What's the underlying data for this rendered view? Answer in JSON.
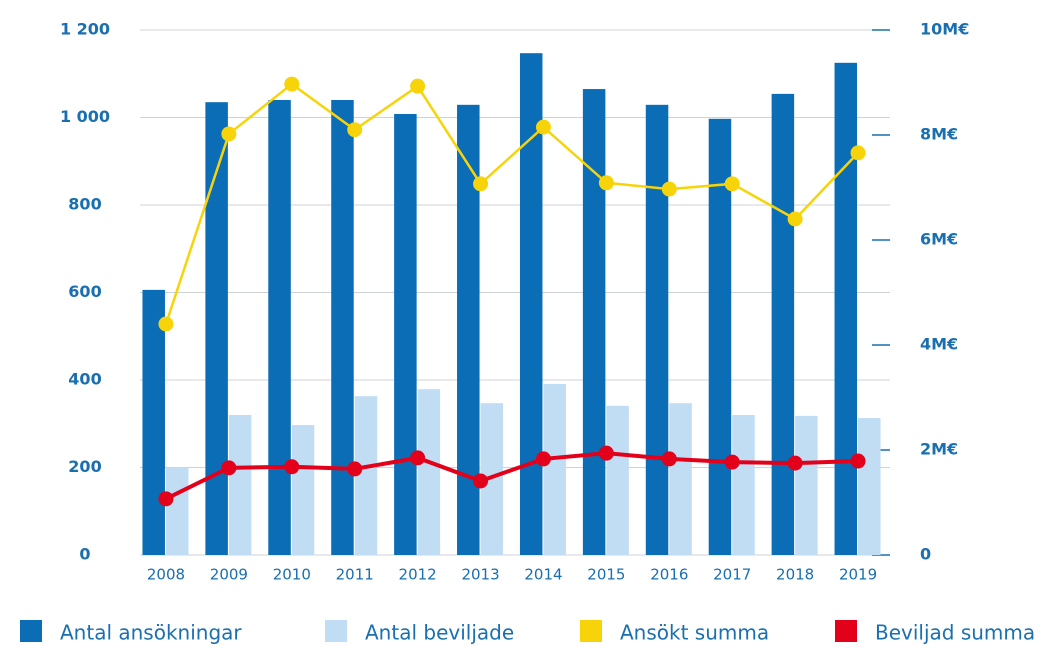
{
  "chart_data": {
    "type": "bar-line",
    "categories": [
      "2008",
      "2009",
      "2010",
      "2011",
      "2012",
      "2013",
      "2014",
      "2015",
      "2016",
      "2017",
      "2018",
      "2019"
    ],
    "series": [
      {
        "name": "Antal ansökningar",
        "type": "bar",
        "color": "#0b6db5",
        "values": [
          606,
          1035,
          1040,
          1040,
          1008,
          1029,
          1147,
          1065,
          1029,
          997,
          1054,
          1125
        ]
      },
      {
        "name": "Antal beviljade",
        "type": "bar",
        "color": "#c0ddf4",
        "values": [
          199,
          320,
          297,
          363,
          379,
          347,
          391,
          341,
          347,
          320,
          318,
          313
        ]
      },
      {
        "name": "Ansökt summa",
        "type": "line",
        "axis": "y2",
        "color": "#f7d40a",
        "values": [
          4.4,
          8.02,
          8.97,
          8.1,
          8.93,
          7.07,
          8.15,
          7.09,
          6.97,
          7.07,
          6.4,
          7.66
        ]
      },
      {
        "name": "Beviljad summa",
        "type": "line",
        "axis": "y2",
        "color": "#e2001a",
        "values": [
          1.07,
          1.66,
          1.68,
          1.64,
          1.85,
          1.41,
          1.83,
          1.94,
          1.83,
          1.77,
          1.75,
          1.79
        ]
      }
    ],
    "ylim": [
      0,
      1200
    ],
    "yticks": [
      0,
      200,
      400,
      600,
      800,
      {
        "value": 1000,
        "label": "1 000"
      },
      {
        "value": 1200,
        "label": "1 200"
      }
    ],
    "y2lim": [
      0,
      10
    ],
    "y2ticks": [
      0,
      {
        "value": 2,
        "label": "2M€"
      },
      {
        "value": 4,
        "label": "4M€"
      },
      {
        "value": 6,
        "label": "6M€"
      },
      {
        "value": 8,
        "label": "8M€"
      },
      {
        "value": 10,
        "label": "10M€"
      }
    ],
    "grid": true,
    "legend": "bottom"
  }
}
